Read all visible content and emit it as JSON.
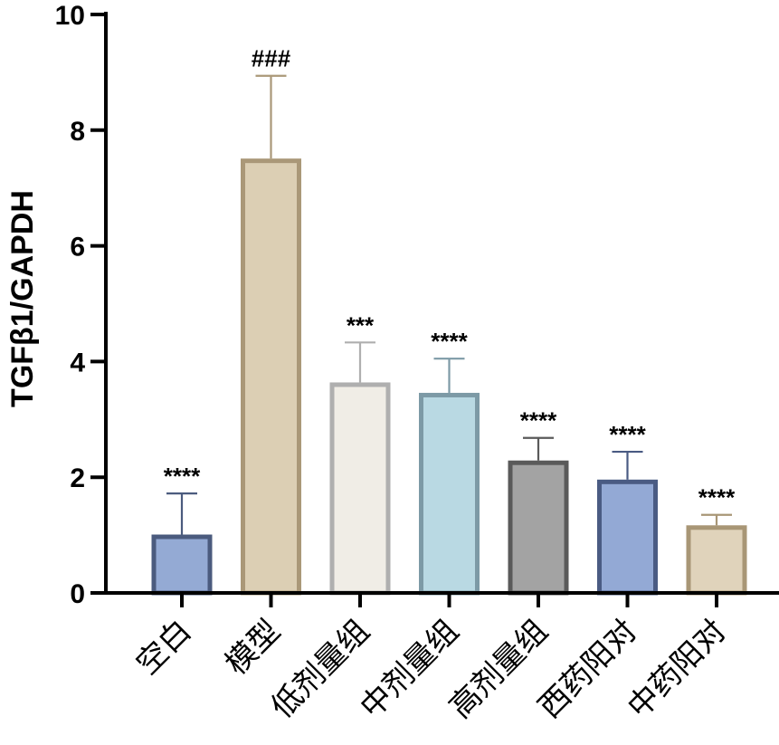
{
  "chart_data": {
    "type": "bar",
    "title": "",
    "xlabel": "",
    "ylabel": "TGFβ1/GAPDH",
    "ylim": [
      0,
      10
    ],
    "yticks": [
      0,
      2,
      4,
      6,
      8,
      10
    ],
    "grid": false,
    "legend": "none",
    "categories": [
      "空白",
      "模型",
      "低剂量组",
      "中剂量组",
      "高剂量组",
      "西药阳对",
      "中药阳对"
    ],
    "values": [
      0.97,
      7.47,
      3.6,
      3.42,
      2.25,
      1.92,
      1.13
    ],
    "errors": [
      0.75,
      1.47,
      0.73,
      0.63,
      0.43,
      0.52,
      0.22
    ],
    "significance": [
      "****",
      "###",
      "***",
      "****",
      "****",
      "****",
      "****"
    ],
    "colors": {
      "fill": [
        "#94aad4",
        "#dccfb4",
        "#f0ede6",
        "#b9d9e3",
        "#a3a3a3",
        "#93a9d5",
        "#e0d3bb"
      ],
      "edge": [
        "#4b5b7e",
        "#aa9878",
        "#afafaf",
        "#7d9aa6",
        "#5a5a5a",
        "#4a5b83",
        "#a89676"
      ]
    }
  }
}
